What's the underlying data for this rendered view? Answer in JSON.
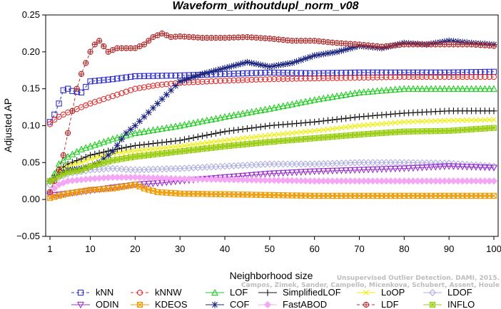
{
  "chart_data": {
    "type": "line",
    "title": "Waveform_withoutdupl_norm_v08",
    "xlabel": "Neighborhood size",
    "ylabel": "Adjusted AP",
    "xlim": [
      1,
      100
    ],
    "ylim": [
      -0.05,
      0.25
    ],
    "xticks": [
      1,
      10,
      20,
      30,
      40,
      50,
      60,
      70,
      80,
      90,
      100
    ],
    "yticks": [
      -0.05,
      0.0,
      0.05,
      0.1,
      0.15,
      0.2,
      0.25
    ],
    "ytick_labels": [
      "−0.05",
      "0.00",
      "0.05",
      "0.10",
      "0.15",
      "0.20",
      "0.25"
    ],
    "grid": false,
    "legend_position": "bottom",
    "series": [
      {
        "name": "kNN",
        "color": "#3333cc",
        "marker": "square",
        "dashed": true,
        "x": [
          1,
          2,
          3,
          4,
          5,
          6,
          8,
          10,
          15,
          20,
          30,
          40,
          50,
          60,
          70,
          80,
          90,
          100
        ],
        "y": [
          0.105,
          0.115,
          0.13,
          0.148,
          0.15,
          0.147,
          0.145,
          0.16,
          0.163,
          0.167,
          0.168,
          0.17,
          0.172,
          0.171,
          0.172,
          0.172,
          0.172,
          0.173
        ]
      },
      {
        "name": "kNNW",
        "color": "#e03030",
        "marker": "circle",
        "dashed": true,
        "x": [
          1,
          2,
          3,
          4,
          5,
          6,
          8,
          10,
          15,
          20,
          25,
          30,
          40,
          50,
          60,
          70,
          80,
          90,
          100
        ],
        "y": [
          0.102,
          0.108,
          0.112,
          0.115,
          0.118,
          0.12,
          0.125,
          0.13,
          0.14,
          0.15,
          0.155,
          0.158,
          0.161,
          0.163,
          0.164,
          0.165,
          0.166,
          0.166,
          0.166
        ]
      },
      {
        "name": "LOF",
        "color": "#22cc22",
        "marker": "triangle-up",
        "dashed": false,
        "x": [
          1,
          2,
          3,
          5,
          8,
          10,
          15,
          20,
          30,
          40,
          50,
          60,
          70,
          80,
          90,
          100
        ],
        "y": [
          0.025,
          0.035,
          0.048,
          0.058,
          0.068,
          0.072,
          0.082,
          0.09,
          0.1,
          0.112,
          0.123,
          0.135,
          0.145,
          0.15,
          0.15,
          0.15
        ]
      },
      {
        "name": "SimplifiedLOF",
        "color": "#111111",
        "marker": "plus",
        "dashed": false,
        "x": [
          1,
          2,
          3,
          5,
          8,
          10,
          15,
          20,
          30,
          40,
          50,
          60,
          70,
          80,
          90,
          100
        ],
        "y": [
          0.025,
          0.03,
          0.04,
          0.048,
          0.055,
          0.06,
          0.067,
          0.073,
          0.08,
          0.092,
          0.1,
          0.105,
          0.112,
          0.117,
          0.12,
          0.12
        ]
      },
      {
        "name": "LoOP",
        "color": "#eeee11",
        "marker": "x",
        "dashed": false,
        "x": [
          1,
          2,
          3,
          5,
          8,
          10,
          15,
          20,
          30,
          40,
          50,
          60,
          70,
          80,
          90,
          100
        ],
        "y": [
          0.025,
          0.03,
          0.038,
          0.045,
          0.05,
          0.055,
          0.062,
          0.066,
          0.072,
          0.08,
          0.087,
          0.093,
          0.1,
          0.105,
          0.107,
          0.108
        ]
      },
      {
        "name": "LDOF",
        "color": "#b0b0e0",
        "marker": "diamond",
        "dashed": false,
        "x": [
          1,
          3,
          5,
          10,
          15,
          20,
          30,
          40,
          50,
          60,
          70,
          80,
          90,
          100
        ],
        "y": [
          0.02,
          0.03,
          0.035,
          0.04,
          0.042,
          0.04,
          0.042,
          0.045,
          0.048,
          0.048,
          0.05,
          0.05,
          0.049,
          0.045
        ]
      },
      {
        "name": "ODIN",
        "color": "#9933cc",
        "marker": "triangle-down",
        "dashed": false,
        "x": [
          1,
          5,
          10,
          15,
          20,
          25,
          30,
          40,
          50,
          60,
          70,
          80,
          90,
          100
        ],
        "y": [
          0.005,
          0.008,
          0.012,
          0.016,
          0.02,
          0.022,
          0.025,
          0.03,
          0.035,
          0.038,
          0.04,
          0.042,
          0.045,
          0.043
        ]
      },
      {
        "name": "KDEOS",
        "color": "#ee9900",
        "marker": "square-x",
        "dashed": false,
        "x": [
          1,
          5,
          10,
          15,
          20,
          22,
          25,
          30,
          40,
          50,
          60,
          70,
          80,
          90,
          100
        ],
        "y": [
          0.002,
          0.008,
          0.013,
          0.015,
          0.02,
          0.015,
          0.01,
          0.008,
          0.007,
          0.006,
          0.005,
          0.005,
          0.005,
          0.005,
          0.005
        ]
      },
      {
        "name": "COF",
        "color": "#1a237e",
        "marker": "asterisk",
        "dashed": false,
        "x": [
          1,
          2,
          3,
          5,
          8,
          10,
          12,
          15,
          18,
          20,
          25,
          30,
          35,
          40,
          45,
          50,
          55,
          60,
          65,
          70,
          75,
          80,
          85,
          90,
          95,
          100
        ],
        "y": [
          0.025,
          0.03,
          0.035,
          0.04,
          0.042,
          0.045,
          0.05,
          0.065,
          0.09,
          0.1,
          0.13,
          0.16,
          0.17,
          0.178,
          0.186,
          0.18,
          0.185,
          0.195,
          0.2,
          0.208,
          0.205,
          0.212,
          0.21,
          0.215,
          0.212,
          0.21
        ]
      },
      {
        "name": "FastABOD",
        "color": "#f4a8f4",
        "marker": "diamond-filled",
        "dashed": false,
        "x": [
          1,
          3,
          5,
          10,
          15,
          20,
          30,
          40,
          50,
          60,
          70,
          80,
          90,
          100
        ],
        "y": [
          0.01,
          0.02,
          0.025,
          0.028,
          0.03,
          0.03,
          0.028,
          0.027,
          0.026,
          0.025,
          0.025,
          0.025,
          0.025,
          0.025
        ]
      },
      {
        "name": "LDF",
        "color": "#b03030",
        "marker": "circle-plus",
        "dashed": true,
        "x": [
          1,
          2,
          3,
          4,
          5,
          6,
          7,
          8,
          9,
          10,
          11,
          12,
          14,
          16,
          18,
          20,
          22,
          24,
          26,
          28,
          30,
          35,
          40,
          45,
          50,
          55,
          60,
          65,
          70,
          75,
          80,
          85,
          90,
          95,
          100
        ],
        "y": [
          0.01,
          0.025,
          0.04,
          0.06,
          0.09,
          0.12,
          0.15,
          0.17,
          0.185,
          0.2,
          0.21,
          0.215,
          0.2,
          0.205,
          0.205,
          0.205,
          0.21,
          0.22,
          0.225,
          0.22,
          0.221,
          0.219,
          0.219,
          0.22,
          0.218,
          0.215,
          0.215,
          0.212,
          0.21,
          0.207,
          0.21,
          0.21,
          0.21,
          0.21,
          0.208
        ]
      },
      {
        "name": "INFLO",
        "color": "#99cc11",
        "marker": "square-star",
        "dashed": false,
        "x": [
          1,
          2,
          3,
          5,
          8,
          10,
          15,
          20,
          30,
          40,
          50,
          60,
          70,
          80,
          90,
          100
        ],
        "y": [
          0.025,
          0.028,
          0.032,
          0.037,
          0.04,
          0.045,
          0.053,
          0.058,
          0.065,
          0.072,
          0.078,
          0.083,
          0.088,
          0.092,
          0.093,
          0.097
        ]
      }
    ],
    "legend_rows": [
      [
        "kNN",
        "kNNW",
        "LOF",
        "SimplifiedLOF",
        "LoOP",
        "LDOF"
      ],
      [
        "ODIN",
        "KDEOS",
        "COF",
        "FastABOD",
        "LDF",
        "INFLO"
      ]
    ],
    "annotation": {
      "line1": "Unsupervised Outlier Detection. DAMI, 2015.",
      "line2": "Campos, Zimek, Sander, Campello, Micenkova, Schubert, Assent, Houle"
    }
  }
}
